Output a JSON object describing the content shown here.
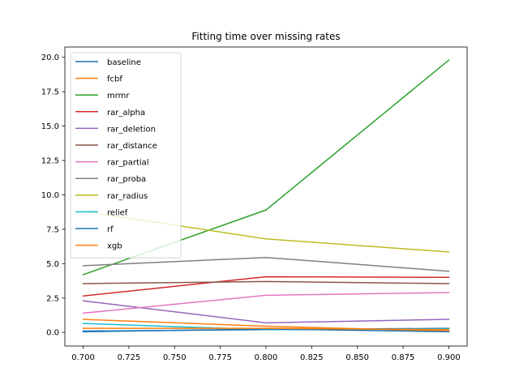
{
  "chart_data": {
    "type": "line",
    "title": "Fitting time over missing rates",
    "xlabel": "",
    "ylabel": "",
    "x": [
      0.7,
      0.8,
      0.9
    ],
    "xlim": [
      0.69,
      0.91
    ],
    "ylim": [
      -0.99,
      20.75
    ],
    "xticks": [
      0.7,
      0.725,
      0.75,
      0.775,
      0.8,
      0.825,
      0.85,
      0.875,
      0.9
    ],
    "xtick_labels": [
      "0.700",
      "0.725",
      "0.750",
      "0.775",
      "0.800",
      "0.825",
      "0.850",
      "0.875",
      "0.900"
    ],
    "yticks": [
      0,
      2.5,
      5,
      7.5,
      10,
      12.5,
      15,
      17.5,
      20
    ],
    "ytick_labels": [
      "0.0",
      "2.5",
      "5.0",
      "7.5",
      "10.0",
      "12.5",
      "15.0",
      "17.5",
      "20.0"
    ],
    "grid": false,
    "legend_position": "top-left",
    "series": [
      {
        "name": "baseline",
        "color": "#1f77b4",
        "values": [
          0.1,
          0.2,
          0.3
        ]
      },
      {
        "name": "fcbf",
        "color": "#ff7f0e",
        "values": [
          0.95,
          0.45,
          0.1
        ]
      },
      {
        "name": "mrmr",
        "color": "#2ca02c",
        "values": [
          4.2,
          8.9,
          19.8
        ]
      },
      {
        "name": "rar_alpha",
        "color": "#d62728",
        "values": [
          2.65,
          4.05,
          4.0
        ]
      },
      {
        "name": "rar_deletion",
        "color": "#9467bd",
        "values": [
          2.3,
          0.7,
          0.95
        ]
      },
      {
        "name": "rar_distance",
        "color": "#8c564b",
        "values": [
          3.55,
          3.7,
          3.55
        ]
      },
      {
        "name": "rar_partial",
        "color": "#e377c2",
        "values": [
          1.4,
          2.7,
          2.9
        ]
      },
      {
        "name": "rar_proba",
        "color": "#7f7f7f",
        "values": [
          4.85,
          5.45,
          4.45
        ]
      },
      {
        "name": "rar_radius",
        "color": "#bcbd22",
        "values": [
          8.8,
          6.8,
          5.85
        ]
      },
      {
        "name": "relief",
        "color": "#17becf",
        "values": [
          0.65,
          0.2,
          0.25
        ]
      },
      {
        "name": "rf",
        "color": "#1f77b4",
        "values": [
          0.05,
          0.25,
          0.05
        ]
      },
      {
        "name": "xgb",
        "color": "#ff7f0e",
        "values": [
          0.3,
          0.3,
          0.2
        ]
      }
    ]
  }
}
